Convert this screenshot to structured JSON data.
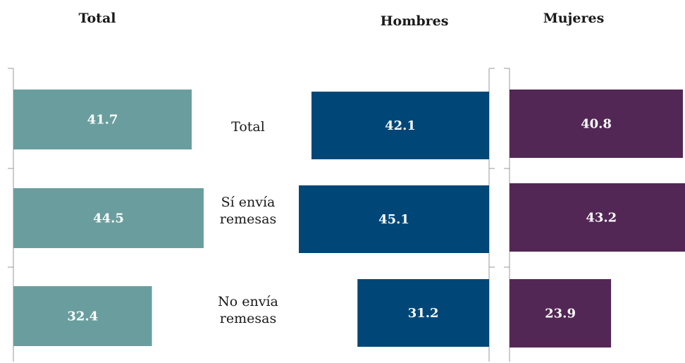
{
  "chart_data": {
    "type": "bar",
    "orientation": "horizontal",
    "categories": [
      "Total",
      "Sí envía remesas",
      "No envía remesas"
    ],
    "category_lines": [
      [
        "Total"
      ],
      [
        "Sí envía",
        "remesas"
      ],
      [
        "No envía",
        "remesas"
      ]
    ],
    "xlim": [
      0,
      50
    ],
    "panels": [
      {
        "title": "Total",
        "direction": "right",
        "color": "#6a9e9e",
        "values": [
          41.7,
          44.5,
          32.4
        ]
      },
      {
        "title": "Hombres",
        "direction": "left",
        "color": "#004777",
        "values": [
          42.1,
          45.1,
          31.2
        ]
      },
      {
        "title": "Mujeres",
        "direction": "right",
        "color": "#532755",
        "values": [
          40.8,
          43.2,
          23.9
        ]
      }
    ]
  }
}
